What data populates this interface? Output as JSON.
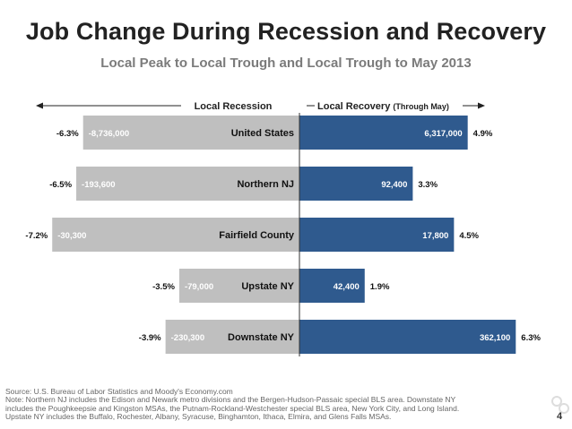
{
  "slide": {
    "title": "Job Change During Recession and Recovery",
    "subtitle": "Local Peak to Local Trough and Local Trough to May 2013",
    "page_number": "4",
    "footnotes": [
      "Source: U.S. Bureau of Labor Statistics and Moody's Economy.com",
      "Note: Northern NJ includes the Edison and Newark metro divisions and the Bergen-Hudson-Passaic special BLS area. Downstate NY",
      "includes the Poughkeepsie and Kingston MSAs, the Putnam-Rockland-Westchester special BLS area, New York City, and Long Island.",
      "Upstate NY includes the Buffalo, Rochester, Albany, Syracuse, Binghamton, Ithaca, Elmira, and Glens Falls MSAs."
    ]
  },
  "chart_data": {
    "type": "bar",
    "orientation": "horizontal-diverging",
    "title": "Job Change During Recession and Recovery",
    "subtitle": "Local Peak to Local Trough and Local Trough to May 2013",
    "header_left": "Local Recession",
    "header_right_main": "Local Recovery",
    "header_right_note": "(Through May)",
    "categories": [
      "United States",
      "Northern NJ",
      "Fairfield County",
      "Upstate NY",
      "Downstate NY"
    ],
    "series": [
      {
        "name": "Local Recession",
        "color": "#bfbfbf",
        "pct": [
          -6.3,
          -6.5,
          -7.2,
          -3.5,
          -3.9
        ],
        "pct_labels": [
          "-6.3%",
          "-6.5%",
          "-7.2%",
          "-3.5%",
          "-3.9%"
        ],
        "value_labels": [
          "-8,736,000",
          "-193,600",
          "-30,300",
          "-79,000",
          "-230,300"
        ]
      },
      {
        "name": "Local Recovery",
        "color": "#2f5a8e",
        "pct": [
          4.9,
          3.3,
          4.5,
          1.9,
          6.3
        ],
        "pct_labels": [
          "4.9%",
          "3.3%",
          "4.5%",
          "1.9%",
          "6.3%"
        ],
        "value_labels": [
          "6,317,000",
          "92,400",
          "17,800",
          "42,400",
          "362,100"
        ]
      }
    ],
    "xlim": [
      -7.5,
      7.5
    ],
    "grid": false,
    "legend": "top-center"
  },
  "colors": {
    "recession_bar": "#bfbfbf",
    "recovery_bar": "#2f5a8e",
    "title": "#222222",
    "subtitle": "#7b7b7b"
  }
}
